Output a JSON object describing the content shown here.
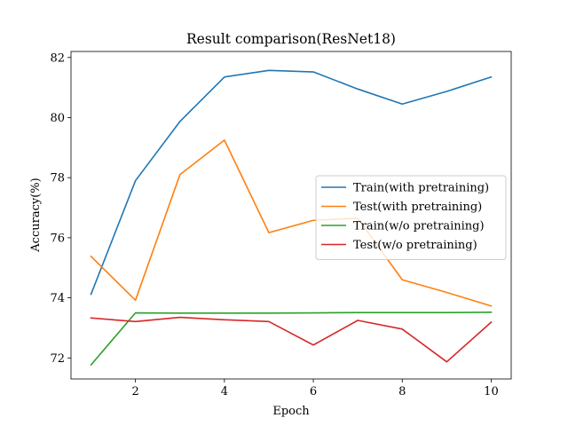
{
  "chart_data": {
    "type": "line",
    "title": "Result comparison(ResNet18)",
    "xlabel": "Epoch",
    "ylabel": "Accuracy(%)",
    "x": [
      1,
      2,
      3,
      4,
      5,
      6,
      7,
      8,
      9,
      10
    ],
    "xlim": [
      0.55,
      10.45
    ],
    "ylim": [
      71.3,
      82.2
    ],
    "xticks": [
      2,
      4,
      6,
      8,
      10
    ],
    "yticks": [
      72,
      74,
      76,
      78,
      80,
      82
    ],
    "grid": false,
    "legend_position": "center-right",
    "series": [
      {
        "name": "Train(with pretraining)",
        "color": "#1f77b4",
        "values": [
          74.12,
          77.9,
          79.87,
          81.35,
          81.57,
          81.52,
          80.95,
          80.45,
          80.87,
          81.35
        ]
      },
      {
        "name": "Test(with pretraining)",
        "color": "#ff7f0e",
        "values": [
          75.38,
          73.92,
          78.1,
          79.25,
          76.17,
          76.58,
          76.65,
          74.6,
          74.18,
          73.73
        ]
      },
      {
        "name": "Train(w/o pretraining)",
        "color": "#2ca02c",
        "values": [
          71.77,
          73.5,
          73.49,
          73.49,
          73.49,
          73.5,
          73.51,
          73.51,
          73.51,
          73.52
        ]
      },
      {
        "name": "Test(w/o pretraining)",
        "color": "#d62728",
        "values": [
          73.33,
          73.21,
          73.35,
          73.27,
          73.21,
          72.43,
          73.25,
          72.96,
          71.87,
          73.19
        ]
      }
    ]
  }
}
